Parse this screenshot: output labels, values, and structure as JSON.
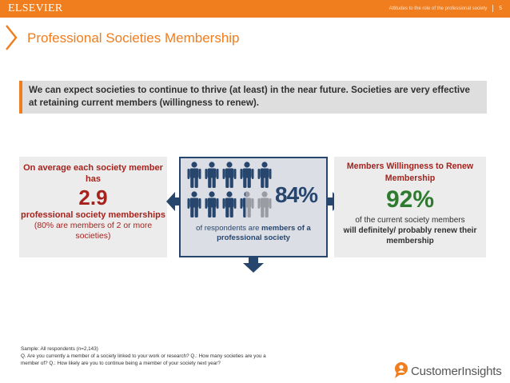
{
  "header": {
    "brand": "ELSEVIER",
    "subtitle": "Attitudes to the role of the professional society",
    "page_number": "5",
    "accent_color": "#f07d1e"
  },
  "title": "Professional Societies Membership",
  "banner": "We can expect societies to continue to thrive (at least) in the near future. Societies are very effective at retaining current members (willingness to renew).",
  "left_panel": {
    "intro": "On average each society member has",
    "value": "2.9",
    "description": "professional society memberships",
    "note": "(80% are members of 2 or more societies)"
  },
  "middle_panel": {
    "value": "84%",
    "share": 0.84,
    "people_total": 10,
    "text_plain": "of respondents are ",
    "text_bold": "members of a professional society"
  },
  "right_panel": {
    "title": "Members Willingness to Renew Membership",
    "value": "92%",
    "description": "of the current society members",
    "description_bold": "will definitely/ probably renew their membership"
  },
  "footnote": {
    "sample": "Sample: All respondents (n=2,143)",
    "questions": "Q. Are you currently a member of a society linked to your work or research? Q.: How many societies are you a member of? Q.: How likely are you to continue being a member of your society next year?"
  },
  "logo": {
    "text": "CustomerInsights",
    "icon": "speech-bubble-person-icon"
  },
  "colors": {
    "navy": "#27466d",
    "dark_red": "#a6221d",
    "green": "#2e7a2e",
    "orange": "#f07d1e"
  }
}
